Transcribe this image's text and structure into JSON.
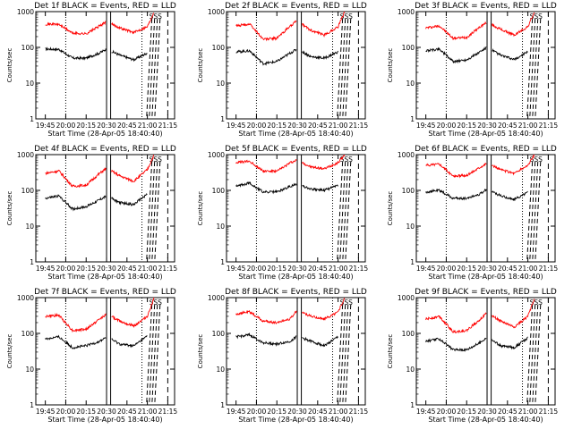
{
  "chart_data": {
    "type": "line",
    "grid": false,
    "ylabel": "Counts/sec",
    "xlabel": "Start Time (28-Apr-05 18:40:40)",
    "x_ticks": [
      "19:45",
      "20:00",
      "20:15",
      "20:30",
      "20:45",
      "21:00",
      "21:15"
    ],
    "y_ticks": [
      "1",
      "10",
      "100",
      "1000"
    ],
    "y_scale": "log",
    "ylim": [
      1,
      1000
    ],
    "series_colors": {
      "events": "#000000",
      "lld": "#ff0000"
    },
    "annotation": "SSS",
    "panels": [
      {
        "title": "Det 1f BLACK = Events, RED = LLD",
        "events": [
          {
            "t": "19:45",
            "v": 90
          },
          {
            "t": "19:55",
            "v": 88
          },
          {
            "t": "20:05",
            "v": 50
          },
          {
            "t": "20:15",
            "v": 50
          },
          {
            "t": "20:25",
            "v": 70
          },
          {
            "t": "20:30",
            "v": 90
          },
          {
            "t": "20:40",
            "v": 60
          },
          {
            "t": "20:50",
            "v": 45
          },
          {
            "t": "21:00",
            "v": 70
          }
        ],
        "lld": [
          {
            "t": "19:45",
            "v": 450
          },
          {
            "t": "19:55",
            "v": 440
          },
          {
            "t": "20:05",
            "v": 250
          },
          {
            "t": "20:15",
            "v": 240
          },
          {
            "t": "20:25",
            "v": 400
          },
          {
            "t": "20:30",
            "v": 520
          },
          {
            "t": "20:40",
            "v": 350
          },
          {
            "t": "20:50",
            "v": 260
          },
          {
            "t": "21:00",
            "v": 380
          },
          {
            "t": "21:05",
            "v": 1000
          }
        ]
      },
      {
        "title": "Det 2f BLACK = Events, RED = LLD",
        "events": [
          {
            "t": "19:45",
            "v": 75
          },
          {
            "t": "19:55",
            "v": 80
          },
          {
            "t": "20:05",
            "v": 35
          },
          {
            "t": "20:15",
            "v": 40
          },
          {
            "t": "20:25",
            "v": 70
          },
          {
            "t": "20:30",
            "v": 90
          },
          {
            "t": "20:40",
            "v": 55
          },
          {
            "t": "20:50",
            "v": 50
          },
          {
            "t": "21:00",
            "v": 75
          }
        ],
        "lld": [
          {
            "t": "19:45",
            "v": 400
          },
          {
            "t": "19:55",
            "v": 450
          },
          {
            "t": "20:05",
            "v": 170
          },
          {
            "t": "20:15",
            "v": 180
          },
          {
            "t": "20:25",
            "v": 400
          },
          {
            "t": "20:30",
            "v": 550
          },
          {
            "t": "20:40",
            "v": 300
          },
          {
            "t": "20:50",
            "v": 220
          },
          {
            "t": "21:00",
            "v": 380
          },
          {
            "t": "21:05",
            "v": 1000
          }
        ]
      },
      {
        "title": "Det 3f BLACK = Events, RED = LLD",
        "events": [
          {
            "t": "19:45",
            "v": 80
          },
          {
            "t": "19:55",
            "v": 90
          },
          {
            "t": "20:05",
            "v": 40
          },
          {
            "t": "20:15",
            "v": 45
          },
          {
            "t": "20:25",
            "v": 75
          },
          {
            "t": "20:30",
            "v": 100
          },
          {
            "t": "20:40",
            "v": 60
          },
          {
            "t": "20:50",
            "v": 45
          },
          {
            "t": "21:00",
            "v": 75
          }
        ],
        "lld": [
          {
            "t": "19:45",
            "v": 350
          },
          {
            "t": "19:55",
            "v": 400
          },
          {
            "t": "20:05",
            "v": 180
          },
          {
            "t": "20:15",
            "v": 190
          },
          {
            "t": "20:25",
            "v": 380
          },
          {
            "t": "20:30",
            "v": 500
          },
          {
            "t": "20:40",
            "v": 320
          },
          {
            "t": "20:50",
            "v": 220
          },
          {
            "t": "21:00",
            "v": 380
          },
          {
            "t": "21:05",
            "v": 1000
          }
        ]
      },
      {
        "title": "Det 4f BLACK = Events, RED = LLD",
        "events": [
          {
            "t": "19:45",
            "v": 60
          },
          {
            "t": "19:55",
            "v": 70
          },
          {
            "t": "20:05",
            "v": 30
          },
          {
            "t": "20:15",
            "v": 35
          },
          {
            "t": "20:25",
            "v": 55
          },
          {
            "t": "20:30",
            "v": 70
          },
          {
            "t": "20:40",
            "v": 45
          },
          {
            "t": "20:50",
            "v": 40
          },
          {
            "t": "21:00",
            "v": 80
          }
        ],
        "lld": [
          {
            "t": "19:45",
            "v": 300
          },
          {
            "t": "19:55",
            "v": 350
          },
          {
            "t": "20:05",
            "v": 130
          },
          {
            "t": "20:15",
            "v": 140
          },
          {
            "t": "20:25",
            "v": 300
          },
          {
            "t": "20:30",
            "v": 420
          },
          {
            "t": "20:40",
            "v": 250
          },
          {
            "t": "20:50",
            "v": 180
          },
          {
            "t": "21:00",
            "v": 380
          },
          {
            "t": "21:05",
            "v": 1000
          }
        ]
      },
      {
        "title": "Det 5f BLACK = Events, RED = LLD",
        "events": [
          {
            "t": "19:45",
            "v": 130
          },
          {
            "t": "19:55",
            "v": 160
          },
          {
            "t": "20:05",
            "v": 90
          },
          {
            "t": "20:15",
            "v": 90
          },
          {
            "t": "20:25",
            "v": 130
          },
          {
            "t": "20:30",
            "v": 150
          },
          {
            "t": "20:40",
            "v": 110
          },
          {
            "t": "20:50",
            "v": 100
          },
          {
            "t": "21:00",
            "v": 140
          }
        ],
        "lld": [
          {
            "t": "19:45",
            "v": 600
          },
          {
            "t": "19:55",
            "v": 650
          },
          {
            "t": "20:05",
            "v": 350
          },
          {
            "t": "20:15",
            "v": 340
          },
          {
            "t": "20:25",
            "v": 600
          },
          {
            "t": "20:30",
            "v": 700
          },
          {
            "t": "20:40",
            "v": 450
          },
          {
            "t": "20:50",
            "v": 400
          },
          {
            "t": "21:00",
            "v": 600
          },
          {
            "t": "21:05",
            "v": 1000
          }
        ]
      },
      {
        "title": "Det 6f BLACK = Events, RED = LLD",
        "events": [
          {
            "t": "19:45",
            "v": 90
          },
          {
            "t": "19:55",
            "v": 100
          },
          {
            "t": "20:05",
            "v": 60
          },
          {
            "t": "20:15",
            "v": 60
          },
          {
            "t": "20:25",
            "v": 80
          },
          {
            "t": "20:30",
            "v": 110
          },
          {
            "t": "20:40",
            "v": 70
          },
          {
            "t": "20:50",
            "v": 55
          },
          {
            "t": "21:00",
            "v": 90
          }
        ],
        "lld": [
          {
            "t": "19:45",
            "v": 500
          },
          {
            "t": "19:55",
            "v": 550
          },
          {
            "t": "20:05",
            "v": 250
          },
          {
            "t": "20:15",
            "v": 260
          },
          {
            "t": "20:25",
            "v": 450
          },
          {
            "t": "20:30",
            "v": 580
          },
          {
            "t": "20:40",
            "v": 380
          },
          {
            "t": "20:50",
            "v": 300
          },
          {
            "t": "21:00",
            "v": 500
          },
          {
            "t": "21:05",
            "v": 1000
          }
        ]
      },
      {
        "title": "Det 7f BLACK = Events, RED = LLD",
        "events": [
          {
            "t": "19:45",
            "v": 70
          },
          {
            "t": "19:55",
            "v": 80
          },
          {
            "t": "20:05",
            "v": 40
          },
          {
            "t": "20:15",
            "v": 45
          },
          {
            "t": "20:25",
            "v": 60
          },
          {
            "t": "20:30",
            "v": 80
          },
          {
            "t": "20:40",
            "v": 50
          },
          {
            "t": "20:50",
            "v": 45
          },
          {
            "t": "21:00",
            "v": 85
          }
        ],
        "lld": [
          {
            "t": "19:45",
            "v": 300
          },
          {
            "t": "19:55",
            "v": 320
          },
          {
            "t": "20:05",
            "v": 120
          },
          {
            "t": "20:15",
            "v": 130
          },
          {
            "t": "20:25",
            "v": 250
          },
          {
            "t": "20:30",
            "v": 350
          },
          {
            "t": "20:40",
            "v": 220
          },
          {
            "t": "20:50",
            "v": 160
          },
          {
            "t": "21:00",
            "v": 300
          },
          {
            "t": "21:05",
            "v": 1000
          }
        ]
      },
      {
        "title": "Det 8f BLACK = Events, RED = LLD",
        "events": [
          {
            "t": "19:45",
            "v": 80
          },
          {
            "t": "19:55",
            "v": 90
          },
          {
            "t": "20:05",
            "v": 55
          },
          {
            "t": "20:15",
            "v": 50
          },
          {
            "t": "20:25",
            "v": 60
          },
          {
            "t": "20:30",
            "v": 85
          },
          {
            "t": "20:40",
            "v": 60
          },
          {
            "t": "20:50",
            "v": 45
          },
          {
            "t": "21:00",
            "v": 80
          }
        ],
        "lld": [
          {
            "t": "19:45",
            "v": 350
          },
          {
            "t": "19:55",
            "v": 400
          },
          {
            "t": "20:05",
            "v": 220
          },
          {
            "t": "20:15",
            "v": 200
          },
          {
            "t": "20:25",
            "v": 260
          },
          {
            "t": "20:30",
            "v": 450
          },
          {
            "t": "20:40",
            "v": 300
          },
          {
            "t": "20:50",
            "v": 250
          },
          {
            "t": "21:00",
            "v": 400
          },
          {
            "t": "21:05",
            "v": 1000
          }
        ]
      },
      {
        "title": "Det 9f BLACK = Events, RED = LLD",
        "events": [
          {
            "t": "19:45",
            "v": 60
          },
          {
            "t": "19:55",
            "v": 70
          },
          {
            "t": "20:05",
            "v": 35
          },
          {
            "t": "20:15",
            "v": 35
          },
          {
            "t": "20:25",
            "v": 55
          },
          {
            "t": "20:30",
            "v": 80
          },
          {
            "t": "20:40",
            "v": 45
          },
          {
            "t": "20:50",
            "v": 40
          },
          {
            "t": "21:00",
            "v": 75
          }
        ],
        "lld": [
          {
            "t": "19:45",
            "v": 250
          },
          {
            "t": "19:55",
            "v": 300
          },
          {
            "t": "20:05",
            "v": 110
          },
          {
            "t": "20:15",
            "v": 120
          },
          {
            "t": "20:25",
            "v": 250
          },
          {
            "t": "20:30",
            "v": 380
          },
          {
            "t": "20:40",
            "v": 220
          },
          {
            "t": "20:50",
            "v": 150
          },
          {
            "t": "21:00",
            "v": 300
          },
          {
            "t": "21:05",
            "v": 1000
          }
        ]
      }
    ]
  }
}
